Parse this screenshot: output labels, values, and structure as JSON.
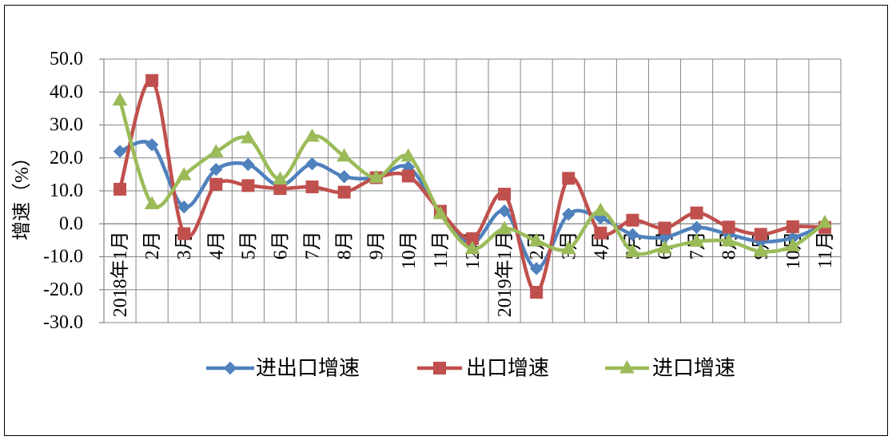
{
  "chart_data": {
    "type": "line",
    "smooth": true,
    "categories": [
      "2018年1月",
      "2月",
      "3月",
      "4月",
      "5月",
      "6月",
      "7月",
      "8月",
      "9月",
      "10月",
      "11月",
      "12月",
      "2019年1月",
      "2月",
      "3月",
      "4月",
      "5月",
      "6月",
      "7月",
      "8月",
      "9月",
      "10月",
      "11月"
    ],
    "ylabel": "增速（%）",
    "ylim": [
      -30,
      50
    ],
    "yticks": [
      50,
      40,
      30,
      20,
      10,
      0,
      -10,
      -20,
      -30
    ],
    "ytick_labels": [
      "50.0",
      "40.0",
      "30.0",
      "20.0",
      "10.0",
      "0.0",
      "-10.0",
      "-20.0",
      "-30.0"
    ],
    "grid": true,
    "legend": "bottom",
    "series": [
      {
        "name": "进出口增速",
        "color": "#4f81bd",
        "marker": "diamond",
        "values": [
          22.0,
          24.0,
          5.1,
          16.5,
          18.0,
          11.6,
          18.2,
          14.3,
          14.0,
          17.2,
          3.5,
          -5.7,
          3.9,
          -13.6,
          2.9,
          1.8,
          -3.3,
          -4.1,
          -1.1,
          -3.2,
          -5.4,
          -4.3,
          -0.3
        ]
      },
      {
        "name": "出口增速",
        "color": "#c0504d",
        "marker": "square",
        "values": [
          10.5,
          43.5,
          -3.0,
          12.0,
          11.6,
          10.7,
          11.2,
          9.6,
          14.0,
          14.5,
          3.8,
          -4.5,
          9.0,
          -20.8,
          13.8,
          -2.8,
          1.1,
          -1.3,
          3.3,
          -1.0,
          -3.2,
          -0.9,
          -1.1
        ]
      },
      {
        "name": "进口增速",
        "color": "#9bbb59",
        "marker": "triangle",
        "values": [
          37.5,
          6.0,
          14.8,
          21.8,
          26.0,
          13.5,
          26.5,
          20.5,
          14.0,
          20.5,
          3.0,
          -7.6,
          -1.5,
          -5.2,
          -7.6,
          4.0,
          -8.5,
          -7.4,
          -5.4,
          -5.3,
          -8.4,
          -6.8,
          0.3
        ]
      }
    ]
  }
}
